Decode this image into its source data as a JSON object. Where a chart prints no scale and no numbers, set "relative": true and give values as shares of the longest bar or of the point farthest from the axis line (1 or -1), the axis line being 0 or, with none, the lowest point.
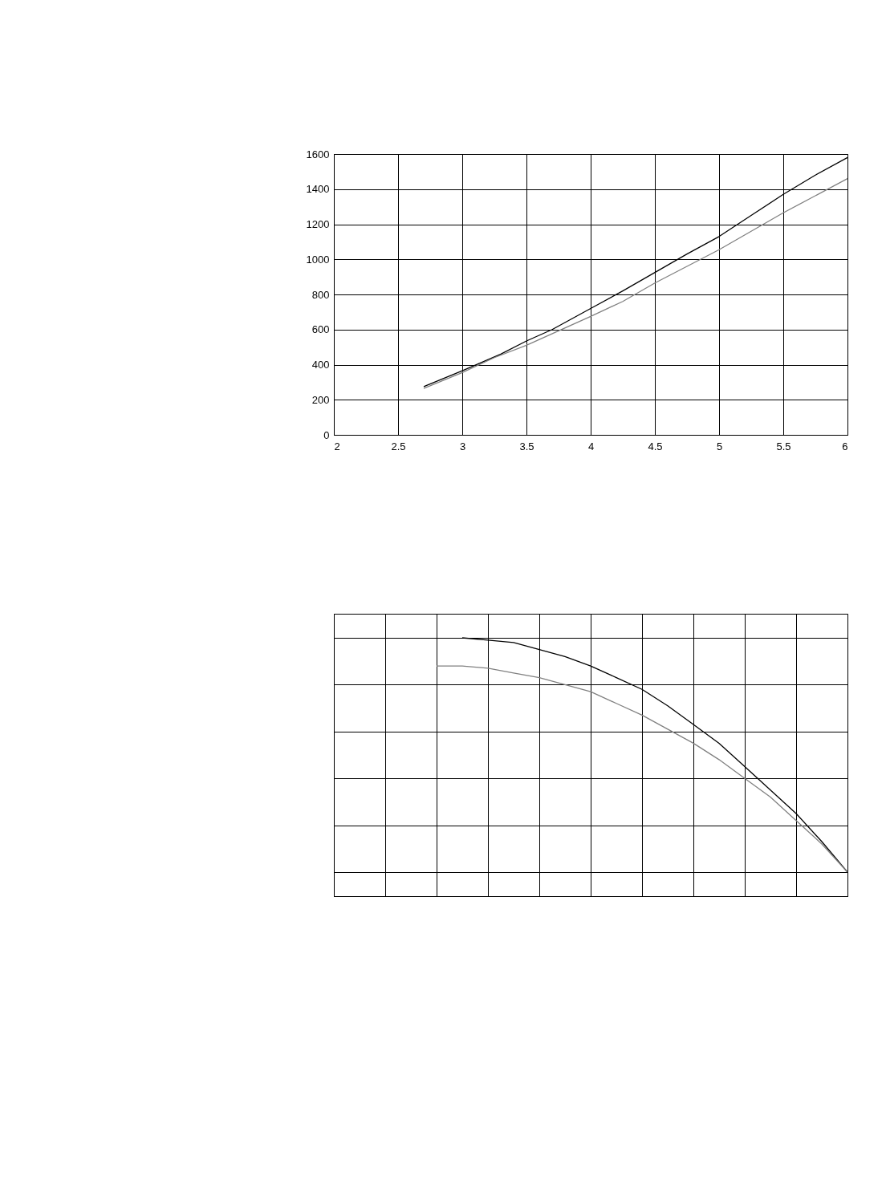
{
  "chart_data": [
    {
      "type": "line",
      "xlim": [
        2,
        6
      ],
      "ylim": [
        0,
        1600
      ],
      "xticks": [
        2,
        2.5,
        3,
        3.5,
        4,
        4.5,
        5,
        5.5,
        6
      ],
      "yticks": [
        0,
        200,
        400,
        600,
        800,
        1000,
        1200,
        1400,
        1600
      ],
      "grid": true,
      "legend": false,
      "marker": "none",
      "line_style": "solid",
      "series": [
        {
          "color": "#000000",
          "x": [
            2.7,
            3,
            3.3,
            3.5,
            3.7,
            4,
            4.25,
            4.5,
            4.75,
            5,
            5.25,
            5.5,
            5.75,
            6
          ],
          "values": [
            275,
            365,
            460,
            535,
            600,
            720,
            820,
            925,
            1030,
            1130,
            1250,
            1370,
            1480,
            1580
          ]
        },
        {
          "color": "#808080",
          "x": [
            2.7,
            3,
            3.25,
            3.5,
            4,
            4.25,
            4.5,
            5,
            5.5,
            6
          ],
          "values": [
            265,
            355,
            440,
            510,
            675,
            760,
            865,
            1055,
            1265,
            1460
          ]
        }
      ]
    },
    {
      "type": "line",
      "relative": true,
      "grid": true,
      "legend": false,
      "marker": "none",
      "line_style": "solid",
      "tick_labels": false,
      "categories": [
        null,
        null,
        null,
        null,
        null,
        null,
        null,
        null,
        null,
        null,
        null,
        null,
        null,
        null,
        null,
        null,
        null,
        null,
        null,
        null,
        null
      ],
      "series": [
        {
          "color": "#000000",
          "values": [
            null,
            null,
            null,
            null,
            null,
            1,
            0.99,
            0.98,
            0.95,
            0.92,
            0.88,
            0.83,
            0.78,
            0.71,
            0.63,
            0.55,
            0.45,
            0.35,
            0.25,
            0.13,
            0
          ]
        },
        {
          "color": "#808080",
          "values": [
            null,
            null,
            null,
            null,
            0.88,
            0.88,
            0.87,
            0.85,
            0.83,
            0.8,
            0.77,
            0.72,
            0.67,
            0.61,
            0.55,
            0.48,
            0.4,
            0.32,
            0.22,
            0.12,
            0
          ]
        }
      ]
    }
  ]
}
